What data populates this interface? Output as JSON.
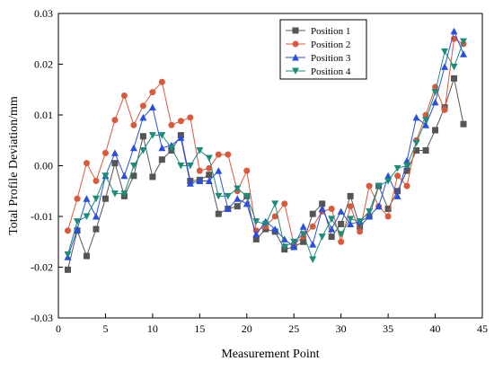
{
  "chart_data": {
    "type": "line",
    "title": "",
    "xlabel": "Measurement Point",
    "ylabel": "Total Profile Deviation/mm",
    "xlim": [
      0,
      45
    ],
    "ylim": [
      -0.03,
      0.03
    ],
    "x_ticks": [
      0,
      5,
      10,
      15,
      20,
      25,
      30,
      35,
      40,
      45
    ],
    "y_ticks": [
      -0.03,
      -0.02,
      -0.01,
      0.0,
      0.01,
      0.02,
      0.03
    ],
    "x_tick_labels": [
      "0",
      "5",
      "10",
      "15",
      "20",
      "25",
      "30",
      "35",
      "40",
      "45"
    ],
    "y_tick_labels": [
      "-0.03",
      "-0.02",
      "-0.01",
      "0.00",
      "0.01",
      "0.02",
      "0.03"
    ],
    "grid": false,
    "legend_position": "top-right",
    "x": [
      1,
      2,
      3,
      4,
      5,
      6,
      7,
      8,
      9,
      10,
      11,
      12,
      13,
      14,
      15,
      16,
      17,
      18,
      19,
      20,
      21,
      22,
      23,
      24,
      25,
      26,
      27,
      28,
      29,
      30,
      31,
      32,
      33,
      34,
      35,
      36,
      37,
      38,
      39,
      40,
      41,
      42,
      43
    ],
    "series": [
      {
        "name": "Position 1",
        "color": "#555555",
        "marker": "square",
        "values": [
          -0.0205,
          -0.0128,
          -0.0178,
          -0.0125,
          -0.0065,
          0.0005,
          -0.006,
          -0.002,
          0.0058,
          -0.0022,
          0.0012,
          0.003,
          0.006,
          -0.003,
          -0.0028,
          -0.0018,
          -0.0095,
          -0.0085,
          -0.008,
          -0.006,
          -0.0145,
          -0.0125,
          -0.013,
          -0.0165,
          -0.016,
          -0.015,
          -0.0095,
          -0.0075,
          -0.014,
          -0.0115,
          -0.006,
          -0.012,
          -0.01,
          -0.004,
          -0.0085,
          -0.005,
          -0.001,
          0.003,
          0.003,
          0.007,
          0.0115,
          0.0172,
          0.0082
        ]
      },
      {
        "name": "Position 2",
        "color": "#d9593d",
        "marker": "circle",
        "values": [
          -0.0128,
          -0.0065,
          0.0005,
          -0.003,
          0.0025,
          0.009,
          0.0138,
          0.008,
          0.0118,
          0.0145,
          0.0165,
          0.008,
          0.0088,
          0.0095,
          -0.001,
          -0.0005,
          0.0022,
          0.0022,
          -0.005,
          -0.001,
          -0.0128,
          -0.012,
          -0.01,
          -0.0075,
          -0.0155,
          -0.014,
          -0.012,
          -0.009,
          -0.0085,
          -0.015,
          -0.008,
          -0.013,
          -0.004,
          -0.008,
          -0.01,
          -0.002,
          -0.004,
          0.005,
          0.01,
          0.0155,
          0.011,
          0.025,
          0.024
        ]
      },
      {
        "name": "Position 3",
        "color": "#2a4fe0",
        "marker": "triangle-up",
        "values": [
          -0.018,
          -0.0125,
          -0.0065,
          -0.01,
          -0.002,
          0.0025,
          -0.002,
          0.0035,
          0.0095,
          0.0115,
          0.0035,
          0.004,
          0.0055,
          -0.0035,
          -0.003,
          -0.003,
          -0.001,
          -0.0085,
          -0.0065,
          -0.0075,
          -0.0135,
          -0.011,
          -0.0125,
          -0.0145,
          -0.016,
          -0.012,
          -0.0155,
          -0.0085,
          -0.0125,
          -0.009,
          -0.0115,
          -0.011,
          -0.01,
          -0.008,
          -0.002,
          -0.006,
          0.001,
          0.0095,
          0.008,
          0.0125,
          0.0195,
          0.0265,
          0.022
        ]
      },
      {
        "name": "Position 4",
        "color": "#1e8c7a",
        "marker": "triangle-down",
        "values": [
          -0.0175,
          -0.011,
          -0.01,
          -0.0065,
          -0.002,
          -0.0055,
          -0.0055,
          0.0,
          0.003,
          0.006,
          0.006,
          0.0035,
          0.0,
          0.0,
          0.003,
          0.0015,
          -0.006,
          -0.006,
          -0.0045,
          -0.006,
          -0.011,
          -0.0115,
          -0.0075,
          -0.016,
          -0.015,
          -0.0135,
          -0.0185,
          -0.014,
          -0.0105,
          -0.0135,
          -0.0105,
          -0.011,
          -0.009,
          -0.004,
          -0.003,
          -0.0005,
          0.0,
          0.0045,
          0.009,
          0.0145,
          0.0225,
          0.0195,
          0.0245
        ]
      }
    ]
  }
}
